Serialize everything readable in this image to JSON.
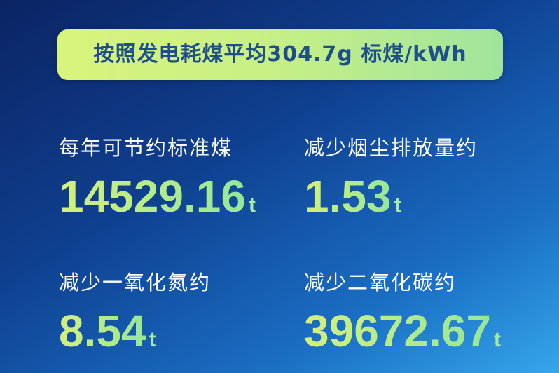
{
  "banner": {
    "text": "按照发电耗煤平均304.7g 标煤/kWh"
  },
  "stats": [
    {
      "label": "每年可节约标准煤",
      "value": "14529.16",
      "unit": "t"
    },
    {
      "label": "减少烟尘排放量约",
      "value": "1.53",
      "unit": "t"
    },
    {
      "label": "减少一氧化氮约",
      "value": "8.54",
      "unit": "t"
    },
    {
      "label": "减少二氧化碳约",
      "value": "39672.67",
      "unit": "t"
    }
  ],
  "colors": {
    "banner_text": "#1e4f8c",
    "number_green": "#b8ec8a",
    "bg_dark": "#0b2463",
    "bg_light": "#35a6ea"
  }
}
